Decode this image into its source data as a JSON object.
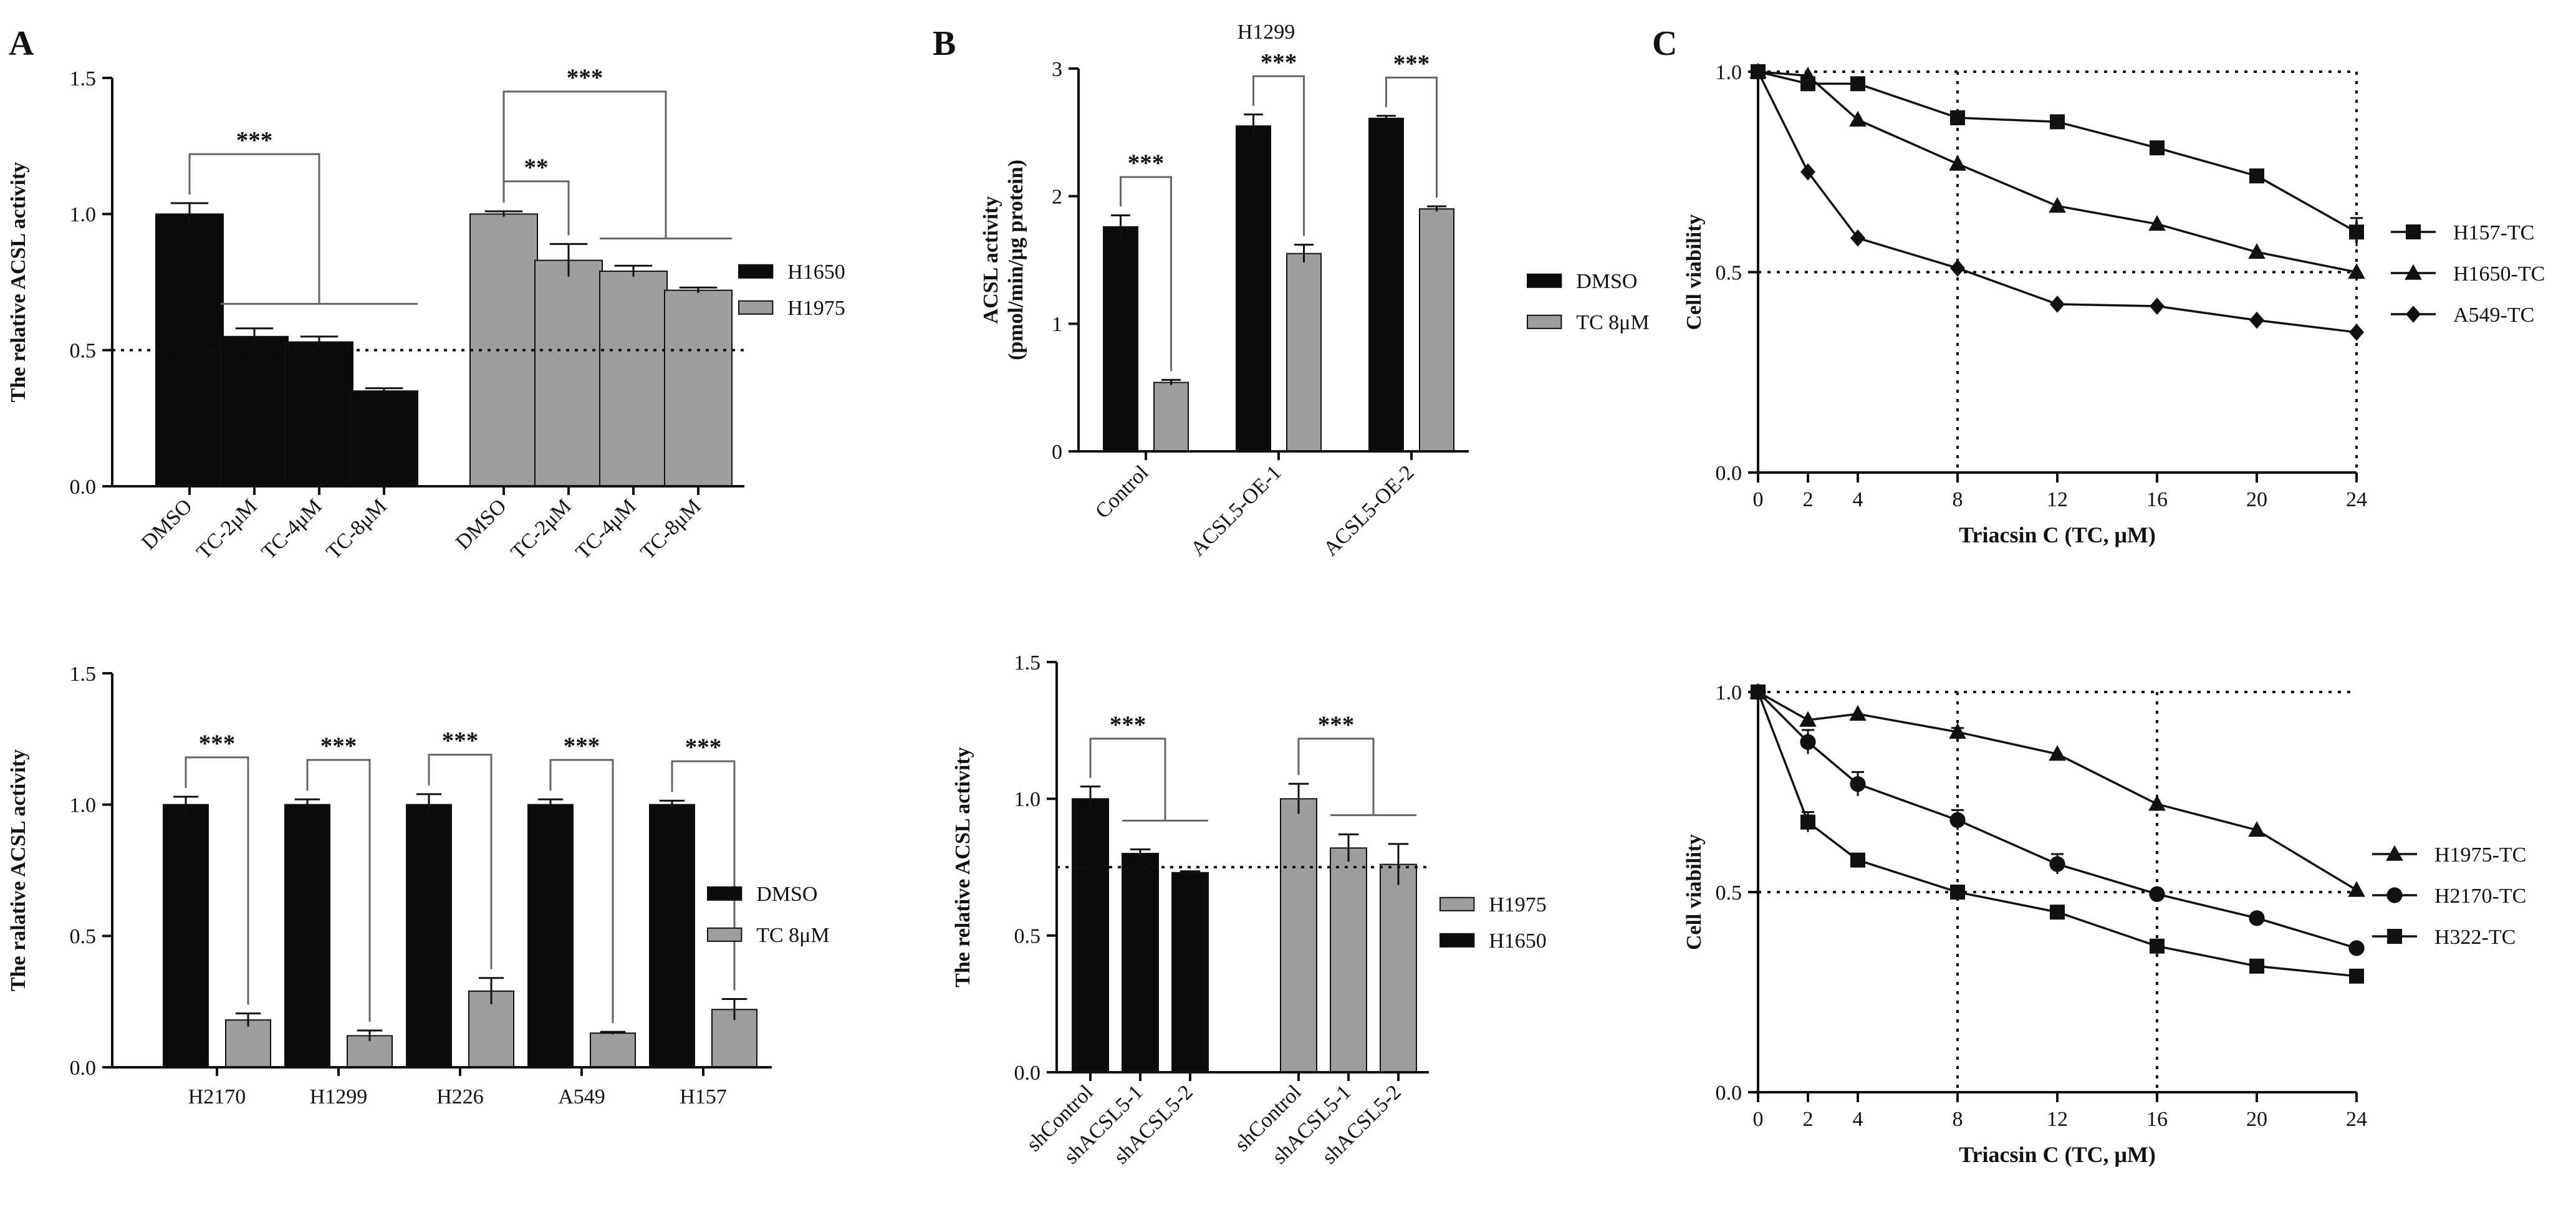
{
  "colors": {
    "black_bar": "#0b0b0b",
    "gray_bar": "#9d9d9d",
    "axis": "#111111"
  },
  "panel_labels": {
    "a": "A",
    "b": "B",
    "c": "C"
  },
  "chart_data": [
    {
      "id": "a1",
      "type": "bar",
      "ylabel": "The relative ACSL activity",
      "ylim": [
        0,
        1.5
      ],
      "yticks": [
        0,
        0.5,
        1.0,
        1.5
      ],
      "ytick_labels": [
        "0.0",
        "0.5",
        "1.0",
        "1.5"
      ],
      "reference_line": 0.5,
      "groups": [
        {
          "series": "H1650",
          "categories": [
            "DMSO",
            "TC-2μM",
            "TC-4μM",
            "TC-8μM"
          ],
          "values": [
            1.0,
            0.55,
            0.53,
            0.35
          ],
          "errors": [
            0.04,
            0.03,
            0.02,
            0.01
          ]
        },
        {
          "series": "H1975",
          "categories": [
            "DMSO",
            "TC-2μM",
            "TC-4μM",
            "TC-8μM"
          ],
          "values": [
            1.0,
            0.83,
            0.79,
            0.72
          ],
          "errors": [
            0.01,
            0.06,
            0.02,
            0.01
          ]
        }
      ],
      "significance": [
        {
          "label": "***",
          "group": 0,
          "from": 0,
          "to_span": [
            1,
            3
          ]
        },
        {
          "label": "**",
          "group": 1,
          "from": 0,
          "to": 1
        },
        {
          "label": "***",
          "group": 1,
          "from": 0,
          "to_span": [
            2,
            3
          ]
        }
      ],
      "legend": [
        {
          "name": "H1650",
          "color": "black"
        },
        {
          "name": "H1975",
          "color": "gray"
        }
      ]
    },
    {
      "id": "a2",
      "type": "bar",
      "ylabel": "The ralative ACSL activity",
      "ylim": [
        0,
        1.5
      ],
      "yticks": [
        0,
        0.5,
        1.0,
        1.5
      ],
      "ytick_labels": [
        "0.0",
        "0.5",
        "1.0",
        "1.5"
      ],
      "categories": [
        "H2170",
        "H1299",
        "H226",
        "A549",
        "H157"
      ],
      "series": [
        {
          "name": "DMSO",
          "values": [
            1.0,
            1.0,
            1.0,
            1.0,
            1.0
          ],
          "errors": [
            0.03,
            0.02,
            0.04,
            0.02,
            0.015
          ]
        },
        {
          "name": "TC 8μM",
          "values": [
            0.18,
            0.12,
            0.29,
            0.13,
            0.22
          ],
          "errors": [
            0.025,
            0.02,
            0.05,
            0.005,
            0.04
          ]
        }
      ],
      "significance_label": "***",
      "legend": [
        {
          "name": "DMSO",
          "color": "black"
        },
        {
          "name": "TC 8μM",
          "color": "gray"
        }
      ]
    },
    {
      "id": "b1",
      "type": "bar",
      "title": "H1299",
      "ylabel": [
        "ACSL activity",
        "(pmol/min/μg protein)"
      ],
      "ylim": [
        0,
        3
      ],
      "yticks": [
        0,
        1,
        2,
        3
      ],
      "ytick_labels": [
        "0",
        "1",
        "2",
        "3"
      ],
      "categories": [
        "Control",
        "ACSL5-OE-1",
        "ACSL5-OE-2"
      ],
      "series": [
        {
          "name": "DMSO",
          "values": [
            1.76,
            2.55,
            2.61
          ],
          "errors": [
            0.09,
            0.09,
            0.02
          ]
        },
        {
          "name": "TC 8μM",
          "values": [
            0.54,
            1.55,
            1.9
          ],
          "errors": [
            0.02,
            0.07,
            0.02
          ]
        }
      ],
      "significance_label": "***",
      "legend": [
        {
          "name": "DMSO",
          "color": "black"
        },
        {
          "name": "TC 8μM",
          "color": "gray"
        }
      ]
    },
    {
      "id": "b2",
      "type": "bar",
      "ylabel": "The relative ACSL activity",
      "ylim": [
        0,
        1.5
      ],
      "yticks": [
        0,
        0.5,
        1.0,
        1.5
      ],
      "ytick_labels": [
        "0.0",
        "0.5",
        "1.0",
        "1.5"
      ],
      "reference_line": 0.75,
      "groups": [
        {
          "series": "H1650",
          "categories": [
            "shControl",
            "shACSL5-1",
            "shACSL5-2"
          ],
          "values": [
            1.0,
            0.8,
            0.73
          ],
          "errors": [
            0.045,
            0.015,
            0.005
          ]
        },
        {
          "series": "H1975",
          "categories": [
            "shControl",
            "shACSL5-1",
            "shACSL5-2"
          ],
          "values": [
            1.0,
            0.82,
            0.76
          ],
          "errors": [
            0.055,
            0.05,
            0.075
          ]
        }
      ],
      "significance": [
        {
          "label": "***",
          "group": 0,
          "from": 0,
          "to_span": [
            1,
            2
          ]
        },
        {
          "label": "***",
          "group": 1,
          "from": 0,
          "to_span": [
            1,
            2
          ]
        }
      ],
      "legend": [
        {
          "name": "H1975",
          "color": "gray"
        },
        {
          "name": "H1650",
          "color": "black"
        }
      ]
    },
    {
      "id": "c1",
      "type": "line",
      "xlabel": "Triacsin C (TC, μM)",
      "ylabel": "Cell viability",
      "x": [
        0,
        2,
        4,
        8,
        12,
        16,
        20,
        24
      ],
      "xlim": [
        0,
        24
      ],
      "xticks": [
        0,
        2,
        4,
        8,
        12,
        16,
        20,
        24
      ],
      "ylim": [
        0,
        1.0
      ],
      "yticks": [
        0,
        0.5,
        1.0
      ],
      "ytick_labels": [
        "0.0",
        "0.5",
        "1.0"
      ],
      "guides_y": [
        0.5,
        1.0
      ],
      "guides_x": [
        8,
        24
      ],
      "series": [
        {
          "name": "H157-TC",
          "marker": "square",
          "y": [
            1.0,
            0.97,
            0.97,
            0.885,
            0.875,
            0.81,
            0.74,
            0.6
          ],
          "errors": [
            0,
            0.01,
            0.01,
            0.015,
            0.01,
            0.01,
            0.015,
            0.035
          ]
        },
        {
          "name": "H1650-TC",
          "marker": "triangle",
          "y": [
            1.0,
            0.99,
            0.88,
            0.77,
            0.665,
            0.62,
            0.55,
            0.5
          ],
          "errors": [
            0,
            0,
            0,
            0,
            0,
            0,
            0,
            0
          ]
        },
        {
          "name": "A549-TC",
          "marker": "diamond",
          "y": [
            1.0,
            0.75,
            0.585,
            0.51,
            0.42,
            0.415,
            0.38,
            0.35
          ],
          "errors": [
            0,
            0,
            0,
            0,
            0,
            0,
            0,
            0
          ]
        }
      ]
    },
    {
      "id": "c2",
      "type": "line",
      "xlabel": "Triacsin C (TC, μM)",
      "ylabel": "Cell viability",
      "x": [
        0,
        2,
        4,
        8,
        12,
        16,
        20,
        24
      ],
      "xlim": [
        0,
        24
      ],
      "xticks": [
        0,
        2,
        4,
        8,
        12,
        16,
        20,
        24
      ],
      "ylim": [
        0,
        1.0
      ],
      "yticks": [
        0,
        0.5,
        1.0
      ],
      "ytick_labels": [
        "0.0",
        "0.5",
        "1.0"
      ],
      "guides_y": [
        0.5,
        1.0
      ],
      "guides_x": [
        8,
        16
      ],
      "series": [
        {
          "name": "H1975-TC",
          "marker": "triangle",
          "y": [
            1.0,
            0.93,
            0.945,
            0.9,
            0.845,
            0.72,
            0.655,
            0.505
          ],
          "errors": [
            0,
            0,
            0,
            0.01,
            0,
            0,
            0,
            0
          ]
        },
        {
          "name": "H2170-TC",
          "marker": "circle",
          "y": [
            1.0,
            0.875,
            0.77,
            0.68,
            0.57,
            0.495,
            0.435,
            0.36
          ],
          "errors": [
            0,
            0.03,
            0.03,
            0.025,
            0.025,
            0,
            0,
            0
          ]
        },
        {
          "name": "H322-TC",
          "marker": "square",
          "y": [
            1.0,
            0.675,
            0.58,
            0.5,
            0.45,
            0.365,
            0.315,
            0.29
          ],
          "errors": [
            0,
            0.025,
            0,
            0,
            0,
            0,
            0,
            0
          ]
        }
      ]
    }
  ]
}
